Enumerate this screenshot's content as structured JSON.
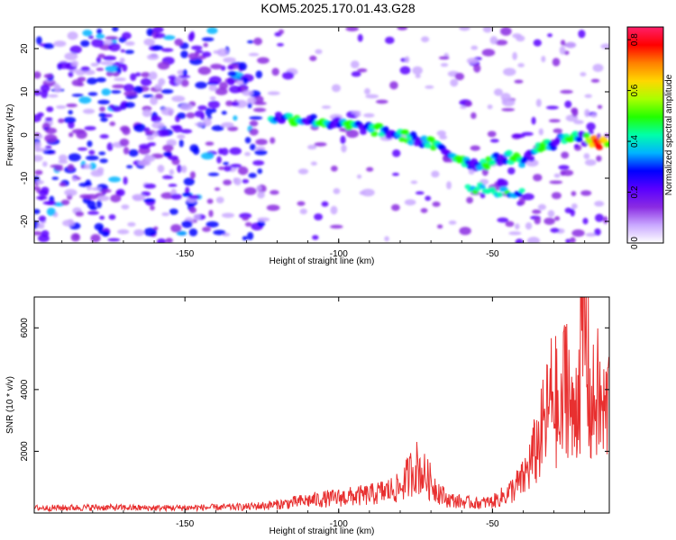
{
  "title": "KOM5.2025.170.01.43.G28",
  "chart_data": [
    {
      "type": "heatmap",
      "xlabel": "Height of straight line (km)",
      "ylabel": "Frequency (Hz)",
      "xlim": [
        -199,
        -12
      ],
      "ylim": [
        -25,
        25
      ],
      "xticks": [
        -150,
        -100,
        -50
      ],
      "yticks": [
        -20,
        -10,
        0,
        10,
        20
      ],
      "colorbar": {
        "label": "Normalized spectral amplitude",
        "range": [
          0,
          0.85
        ],
        "ticks": [
          "0.0",
          "0.2",
          "0.4",
          "0.6",
          "0.8"
        ],
        "colormap": [
          "#ffffff",
          "#c9a8ff",
          "#8a2be2",
          "#5a00ff",
          "#0000ff",
          "#00b4ff",
          "#00ffaa",
          "#22ff00",
          "#aaff00",
          "#ffd700",
          "#ff8000",
          "#ff0000",
          "#ff1f6a"
        ]
      },
      "signal_trace": {
        "x": [
          -120,
          -110,
          -100,
          -90,
          -80,
          -70,
          -62,
          -55,
          -50,
          -45,
          -40,
          -35,
          -30,
          -25,
          -20,
          -15,
          -12
        ],
        "y": [
          4,
          3.5,
          2.5,
          1.5,
          0,
          -2,
          -5,
          -7,
          -6,
          -5,
          -6,
          -3,
          -2,
          0,
          -1,
          -2,
          -2
        ]
      }
    },
    {
      "type": "line",
      "xlabel": "Height of straight line (km)",
      "ylabel": "SNR (10 * v/v)",
      "xlim": [
        -199,
        -12
      ],
      "ylim": [
        0,
        7000
      ],
      "xticks": [
        -150,
        -100,
        -50
      ],
      "yticks": [
        2000,
        4000,
        6000
      ],
      "series": [
        {
          "color": "#e83030",
          "x": [
            -199,
            -180,
            -160,
            -140,
            -130,
            -120,
            -110,
            -100,
            -90,
            -80,
            -75,
            -70,
            -65,
            -60,
            -55,
            -50,
            -45,
            -40,
            -35,
            -32,
            -30,
            -28,
            -26,
            -24,
            -22,
            -20,
            -18,
            -16,
            -14,
            -12
          ],
          "y": [
            180,
            200,
            180,
            200,
            220,
            300,
            450,
            550,
            650,
            900,
            1700,
            1100,
            500,
            400,
            350,
            400,
            700,
            1200,
            2500,
            3600,
            4500,
            2800,
            5500,
            3000,
            4800,
            6900,
            3500,
            4300,
            3400,
            4100
          ]
        }
      ]
    }
  ]
}
